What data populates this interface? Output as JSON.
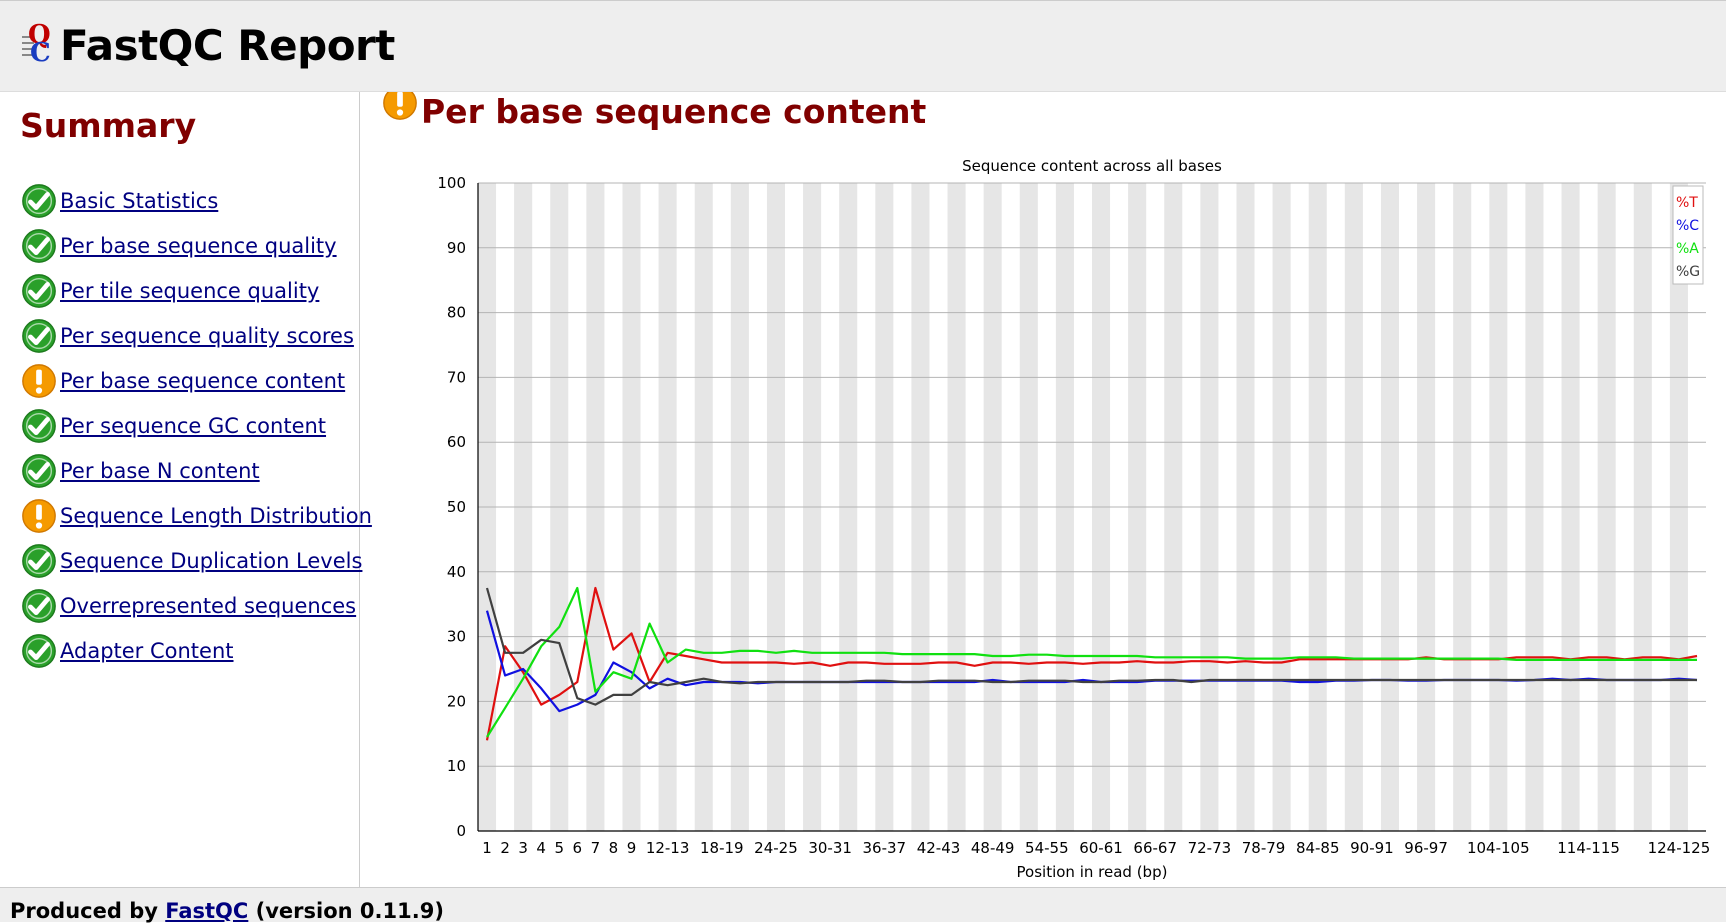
{
  "app": {
    "title": "FastQC Report"
  },
  "sidebar": {
    "title": "Summary",
    "items": [
      {
        "label": "Basic Statistics",
        "status": "pass"
      },
      {
        "label": "Per base sequence quality",
        "status": "pass"
      },
      {
        "label": "Per tile sequence quality",
        "status": "pass"
      },
      {
        "label": "Per sequence quality scores",
        "status": "pass"
      },
      {
        "label": "Per base sequence content",
        "status": "warn"
      },
      {
        "label": "Per sequence GC content",
        "status": "pass"
      },
      {
        "label": "Per base N content",
        "status": "pass"
      },
      {
        "label": "Sequence Length Distribution",
        "status": "warn"
      },
      {
        "label": "Sequence Duplication Levels",
        "status": "pass"
      },
      {
        "label": "Overrepresented sequences",
        "status": "pass"
      },
      {
        "label": "Adapter Content",
        "status": "pass"
      }
    ]
  },
  "main": {
    "section_title": "Per base sequence content",
    "section_status": "warn"
  },
  "colors": {
    "title_red": "#800000",
    "link_blue": "#000080",
    "pass_green": "#2aa02a",
    "warn_orange": "#f59a00",
    "T": "#e01010",
    "C": "#1010e0",
    "A": "#10e010",
    "G": "#404040"
  },
  "icons": {
    "pass": "check-circle-icon",
    "warn": "exclamation-circle-icon"
  },
  "footer": {
    "prefix": "Produced by",
    "link": "FastQC",
    "suffix": "(version 0.11.9)"
  },
  "chart_data": {
    "type": "line",
    "title": "Sequence content across all bases",
    "xlabel": "Position in read (bp)",
    "ylabel": "",
    "ylim": [
      0,
      100
    ],
    "yticks": [
      0,
      10,
      20,
      30,
      40,
      50,
      60,
      70,
      80,
      90,
      100
    ],
    "grid": true,
    "legend_position": "top-right",
    "x": [
      "1",
      "2",
      "3",
      "4",
      "5",
      "6",
      "7",
      "8",
      "9",
      "10-11",
      "12-13",
      "14-15",
      "16-17",
      "18-19",
      "20-21",
      "22-23",
      "24-25",
      "26-27",
      "28-29",
      "30-31",
      "32-33",
      "34-35",
      "36-37",
      "38-39",
      "40-41",
      "42-43",
      "44-45",
      "46-47",
      "48-49",
      "50-51",
      "52-53",
      "54-55",
      "56-57",
      "58-59",
      "60-61",
      "62-63",
      "64-65",
      "66-67",
      "68-69",
      "70-71",
      "72-73",
      "74-75",
      "76-77",
      "78-79",
      "80-81",
      "82-83",
      "84-85",
      "86-87",
      "88-89",
      "90-91",
      "92-93",
      "94-95",
      "96-97",
      "98-99",
      "100-101",
      "102-103",
      "104-105",
      "106-107",
      "108-109",
      "110-111",
      "112-113",
      "114-115",
      "116-117",
      "118-119",
      "120-121",
      "122-123",
      "124-125",
      "126-127"
    ],
    "x_tick_labels": [
      "1",
      "2",
      "3",
      "4",
      "5",
      "6",
      "7",
      "8",
      "9",
      "12-13",
      "18-19",
      "24-25",
      "30-31",
      "36-37",
      "42-43",
      "48-49",
      "54-55",
      "60-61",
      "66-67",
      "72-73",
      "78-79",
      "84-85",
      "90-91",
      "96-97",
      "104-105",
      "114-115",
      "124-125"
    ],
    "series": [
      {
        "name": "%T",
        "color": "#e01010",
        "values": [
          14,
          28.5,
          24.5,
          19.5,
          21,
          23,
          37.5,
          28,
          30.5,
          23,
          27.5,
          27,
          26.5,
          26,
          26,
          26,
          26,
          25.8,
          26,
          25.5,
          26,
          26,
          25.8,
          25.8,
          25.8,
          26,
          26,
          25.5,
          26,
          26,
          25.8,
          26,
          26,
          25.8,
          26,
          26,
          26.2,
          26,
          26,
          26.2,
          26.2,
          26,
          26.2,
          26,
          26,
          26.5,
          26.5,
          26.5,
          26.5,
          26.5,
          26.5,
          26.5,
          26.8,
          26.5,
          26.5,
          26.5,
          26.5,
          26.8,
          26.8,
          26.8,
          26.5,
          26.8,
          26.8,
          26.5,
          26.8,
          26.8,
          26.5,
          27
        ]
      },
      {
        "name": "%C",
        "color": "#1010e0",
        "values": [
          34,
          24,
          25,
          22,
          18.5,
          19.5,
          21,
          26,
          24.5,
          22,
          23.5,
          22.5,
          23,
          23,
          23,
          22.8,
          23,
          23,
          23,
          23,
          23,
          23,
          23,
          23,
          23,
          23,
          23,
          23,
          23.3,
          23,
          23,
          23,
          23,
          23.3,
          23,
          23,
          23,
          23.2,
          23.2,
          23.2,
          23.2,
          23.2,
          23.2,
          23.2,
          23.2,
          23,
          23,
          23.2,
          23.2,
          23.3,
          23.3,
          23.2,
          23.2,
          23.3,
          23.3,
          23.3,
          23.3,
          23.2,
          23.3,
          23.5,
          23.3,
          23.5,
          23.3,
          23.3,
          23.3,
          23.3,
          23.5,
          23.3
        ]
      },
      {
        "name": "%A",
        "color": "#10e010",
        "values": [
          14.5,
          19,
          23.5,
          28.5,
          31.5,
          37.5,
          21.5,
          24.5,
          23.5,
          32,
          26,
          28,
          27.5,
          27.5,
          27.8,
          27.8,
          27.5,
          27.8,
          27.5,
          27.5,
          27.5,
          27.5,
          27.5,
          27.3,
          27.3,
          27.3,
          27.3,
          27.3,
          27,
          27,
          27.2,
          27.2,
          27,
          27,
          27,
          27,
          27,
          26.8,
          26.8,
          26.8,
          26.8,
          26.8,
          26.6,
          26.6,
          26.6,
          26.8,
          26.8,
          26.8,
          26.6,
          26.6,
          26.6,
          26.6,
          26.6,
          26.6,
          26.6,
          26.6,
          26.6,
          26.4,
          26.4,
          26.4,
          26.4,
          26.4,
          26.4,
          26.4,
          26.4,
          26.4,
          26.4,
          26.4
        ]
      },
      {
        "name": "%G",
        "color": "#404040",
        "values": [
          37.5,
          27.5,
          27.5,
          29.5,
          29,
          20.5,
          19.5,
          21,
          21,
          23,
          22.5,
          23,
          23.5,
          23,
          22.8,
          23,
          23,
          23,
          23,
          23,
          23,
          23.2,
          23.2,
          23,
          23,
          23.2,
          23.2,
          23.2,
          23,
          23,
          23.2,
          23.2,
          23.2,
          23,
          23,
          23.2,
          23.2,
          23.3,
          23.3,
          23,
          23.3,
          23.3,
          23.3,
          23.3,
          23.3,
          23.3,
          23.3,
          23.3,
          23.3,
          23.3,
          23.3,
          23.3,
          23.3,
          23.3,
          23.3,
          23.3,
          23.3,
          23.3,
          23.3,
          23.3,
          23.3,
          23.3,
          23.3,
          23.3,
          23.3,
          23.3,
          23.3,
          23.3
        ]
      }
    ]
  }
}
